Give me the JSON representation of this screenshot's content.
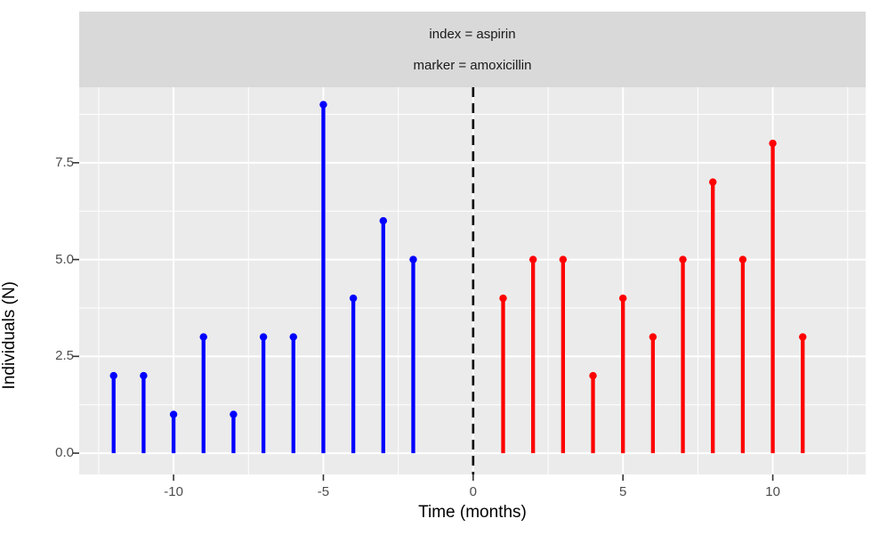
{
  "colors": {
    "strip_bg": "#D9D9D9",
    "panel_bg": "#EBEBEB",
    "grid": "#FFFFFF",
    "tick_mark": "#333333",
    "tick_label": "#4D4D4D",
    "axis_title": "#000000",
    "vline": "#000000",
    "series_index": "#0000FF",
    "series_marker": "#FF0000"
  },
  "chart_data": {
    "type": "bar",
    "subtype": "stem-lollipop",
    "facet": {
      "line1": "index = aspirin",
      "line2": "marker = amoxicillin"
    },
    "xlabel": "Time (months)",
    "ylabel": "Individuals (N)",
    "xlim": [
      -13.15,
      13.1
    ],
    "ylim": [
      -0.55,
      9.45
    ],
    "grid": true,
    "legend": "none",
    "x_ticks": [
      -10,
      -5,
      0,
      5,
      10
    ],
    "x_tick_labels": [
      "-10",
      "-5",
      "0",
      "5",
      "10"
    ],
    "x_minor_ticks": [
      -12.5,
      -7.5,
      -2.5,
      2.5,
      7.5,
      12.5
    ],
    "y_ticks": [
      0,
      2.5,
      5,
      7.5
    ],
    "y_tick_labels": [
      "0.0",
      "2.5",
      "5.0",
      "7.5"
    ],
    "y_minor_ticks": [
      1.25,
      3.75,
      6.25,
      8.75
    ],
    "vline": {
      "x": 0,
      "style": "dashed",
      "color": "#000000"
    },
    "series": [
      {
        "name": "index (aspirin)",
        "color": "#0000FF",
        "x": [
          -12,
          -11,
          -10,
          -9,
          -8,
          -7,
          -6,
          -5,
          -4,
          -3,
          -2
        ],
        "values": [
          2,
          2,
          1,
          3,
          1,
          3,
          3,
          9,
          4,
          6,
          5
        ]
      },
      {
        "name": "marker (amoxicillin)",
        "color": "#FF0000",
        "x": [
          1,
          2,
          3,
          4,
          5,
          6,
          7,
          8,
          9,
          10,
          11
        ],
        "values": [
          4,
          5,
          5,
          2,
          4,
          3,
          5,
          7,
          5,
          8,
          3
        ]
      }
    ]
  }
}
